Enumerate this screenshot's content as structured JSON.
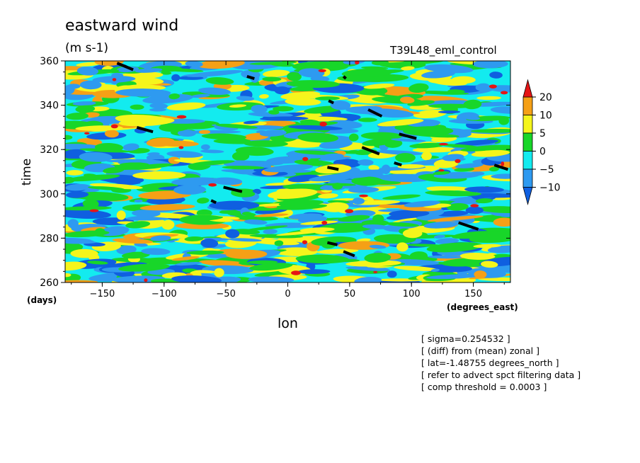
{
  "chart_data": {
    "type": "heatmap",
    "title": "eastward wind",
    "units": "(m s-1)",
    "run_name": "T39L48_eml_control",
    "xlabel": "lon",
    "ylabel": "time",
    "x_unit": "(degrees_east)",
    "y_unit": "(days)",
    "xlim": [
      -180,
      180
    ],
    "ylim": [
      260,
      360
    ],
    "x_ticks": [
      -150,
      -100,
      -50,
      0,
      50,
      100,
      150
    ],
    "y_ticks": [
      260,
      280,
      300,
      320,
      340,
      360
    ],
    "colorbar": {
      "levels": [
        -10,
        -5,
        0,
        5,
        10,
        20
      ],
      "labels": [
        "20",
        "10",
        "5",
        "0",
        "-5",
        "-10"
      ],
      "colors": [
        "#0f5fe0",
        "#2e9af0",
        "#13ebef",
        "#18d629",
        "#f5f51c",
        "#f5a016",
        "#e51515"
      ],
      "extend": "both"
    },
    "black_segments": [
      [
        -138,
        359,
        -125,
        356
      ],
      [
        -33,
        353,
        -27,
        352
      ],
      [
        45,
        353,
        47,
        352
      ],
      [
        33,
        342,
        37,
        341
      ],
      [
        65,
        338,
        76,
        335
      ],
      [
        -122,
        330,
        -109,
        328
      ],
      [
        90,
        327,
        104,
        325
      ],
      [
        60,
        321,
        74,
        318
      ],
      [
        86,
        314,
        92,
        313
      ],
      [
        32,
        312,
        41,
        311
      ],
      [
        167,
        313,
        178,
        311
      ],
      [
        -52,
        303,
        -37,
        301
      ],
      [
        -62,
        297,
        -58,
        296
      ],
      [
        138,
        287,
        154,
        284
      ],
      [
        32,
        278,
        40,
        277
      ],
      [
        45,
        274,
        54,
        272
      ]
    ],
    "grid": false
  },
  "notes": [
    "[ sigma=0.254532 ]",
    "[ (diff) from (mean) zonal ]",
    "[ lat=-1.48755 degrees_north ]",
    "[ refer to advect spct filtering data ]",
    "[ comp threshold = 0.0003 ]"
  ]
}
